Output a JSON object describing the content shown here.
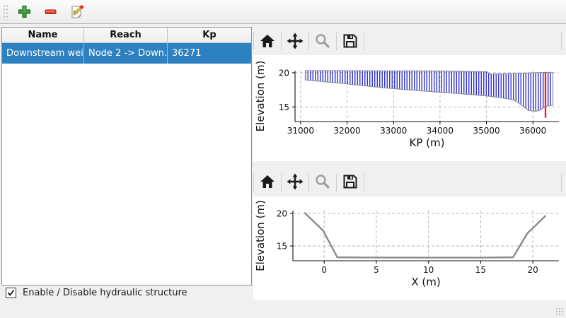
{
  "main_toolbar": {
    "buttons": [
      {
        "icon": "plus-icon"
      },
      {
        "icon": "minus-icon"
      },
      {
        "icon": "edit-icon"
      }
    ]
  },
  "table": {
    "columns": [
      "Name",
      "Reach",
      "Kp"
    ],
    "rows": [
      {
        "name": "Downstream weir",
        "reach": "Node 2 -> Down…",
        "kp": "36271",
        "selected": true
      }
    ]
  },
  "checkbox": {
    "label": "Enable / Disable hydraulic structure",
    "checked": true
  },
  "plot_toolbars": {
    "icons": [
      "home-icon",
      "pan-icon",
      "zoom-icon",
      "save-icon"
    ],
    "disabled": [
      "zoom-icon"
    ]
  },
  "colors": {
    "window_bg": "#f0f0f0",
    "selection_blue": "#2e81c1",
    "hatch_blue": "#2121cd",
    "marker_red": "#e8233d",
    "profile_gray": "#8a8a8a",
    "band_edge": "#8a8f99"
  },
  "chart_data": [
    {
      "type": "area",
      "xlabel": "KP (m)",
      "ylabel": "Elevation (m)",
      "xlim": [
        30880,
        36560
      ],
      "ylim": [
        12.86,
        20.3
      ],
      "xticks": [
        31000,
        32000,
        33000,
        34000,
        35000,
        36000
      ],
      "yticks": [
        15,
        20
      ],
      "grid": true,
      "hatch": {
        "style": "vertical",
        "color": "#2121cd",
        "spacing": 3.5,
        "width": 1.3
      },
      "edge_color": "#8a8f99",
      "band": {
        "kp": [
          31100,
          31500,
          32000,
          32500,
          33000,
          33500,
          34000,
          34500,
          35000,
          35080,
          35350,
          35600,
          35750,
          35900,
          36050,
          36150,
          36271,
          36430
        ],
        "bed": [
          18.95,
          18.7,
          18.37,
          18.0,
          17.68,
          17.4,
          17.15,
          16.9,
          16.6,
          16.55,
          16.3,
          16.0,
          15.3,
          14.5,
          14.35,
          14.5,
          15.1,
          15.25
        ],
        "top": [
          20.3,
          20.3,
          20.29,
          20.28,
          20.27,
          20.26,
          20.25,
          20.2,
          20.15,
          19.78,
          19.82,
          19.88,
          19.92,
          19.95,
          20.0,
          20.02,
          20.05,
          20.05
        ]
      },
      "marker_line": {
        "kp": 36271,
        "from": 13.4,
        "to": 20.05,
        "color": "#e8233d"
      }
    },
    {
      "type": "line",
      "xlabel": "X (m)",
      "ylabel": "Elevation (m)",
      "xlim": [
        -3,
        22.5
      ],
      "ylim": [
        12.72,
        20.43
      ],
      "xticks": [
        0,
        5,
        10,
        15,
        20
      ],
      "yticks": [
        15,
        20
      ],
      "grid": true,
      "line_color": "#8a8a8a",
      "x": [
        -1.85,
        -0.1,
        1.25,
        5,
        10,
        15,
        18.1,
        19.5,
        19.75,
        21.2
      ],
      "y": [
        20.05,
        17.35,
        13.25,
        13.22,
        13.2,
        13.2,
        13.25,
        17.0,
        17.35,
        19.6
      ]
    }
  ]
}
